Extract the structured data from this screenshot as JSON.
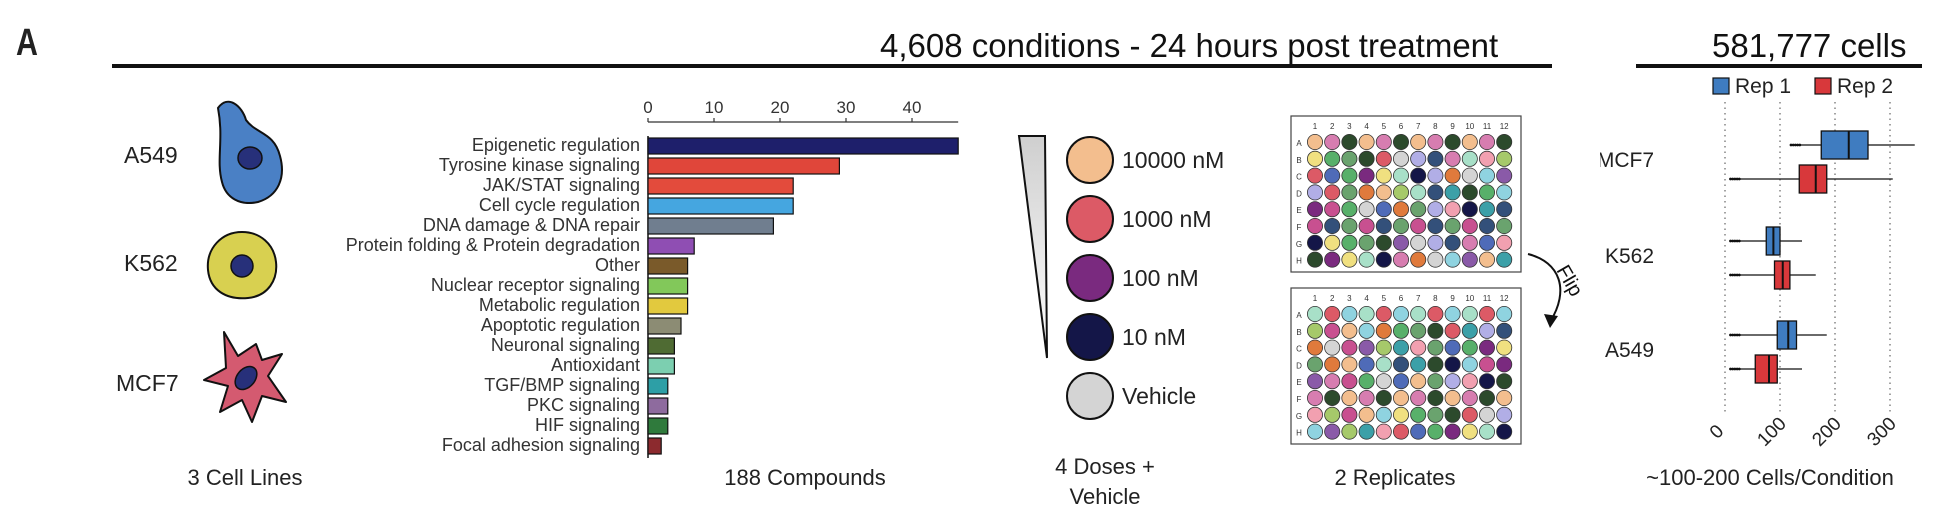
{
  "panel_letter": "A",
  "header": {
    "main_title": "4,608 conditions - 24 hours post treatment",
    "right_title": "581,777 cells"
  },
  "cell_lines": {
    "items": [
      {
        "label": "A549",
        "color": "#4a80c5"
      },
      {
        "label": "K562",
        "color": "#d8d050"
      },
      {
        "label": "MCF7",
        "color": "#d45a70"
      }
    ],
    "footer": "3 Cell Lines"
  },
  "compounds": {
    "footer": "188 Compounds",
    "chart_data": {
      "type": "bar",
      "orientation": "horizontal",
      "categories": [
        "Epigenetic regulation",
        "Tyrosine kinase signaling",
        "JAK/STAT signaling",
        "Cell cycle regulation",
        "DNA damage & DNA repair",
        "Protein folding & Protein degradation",
        "Other",
        "Nuclear receptor signaling",
        "Metabolic regulation",
        "Apoptotic regulation",
        "Neuronal signaling",
        "Antioxidant",
        "TGF/BMP signaling",
        "PKC signaling",
        "HIF signaling",
        "Focal adhesion signaling"
      ],
      "values": [
        47,
        29,
        22,
        22,
        19,
        7,
        6,
        6,
        6,
        5,
        4,
        4,
        3,
        3,
        3,
        2
      ],
      "colors": [
        "#1e1f6b",
        "#e0463a",
        "#e34b3c",
        "#45a6e0",
        "#707e8f",
        "#8f4eb3",
        "#7a5a2a",
        "#82c85a",
        "#e2c93e",
        "#8c8c74",
        "#4f6b33",
        "#7ccfb0",
        "#2d9fa6",
        "#8e6b9e",
        "#2f7a3c",
        "#8c2a2e"
      ],
      "xlim": [
        0,
        47
      ],
      "xticks": [
        0,
        10,
        20,
        30,
        40
      ]
    }
  },
  "doses": {
    "items": [
      {
        "label": "10000 nM",
        "color": "#f3be8e"
      },
      {
        "label": "1000 nM",
        "color": "#dc5a66"
      },
      {
        "label": "100 nM",
        "color": "#7a2a7f"
      },
      {
        "label": "10 nM",
        "color": "#141648"
      },
      {
        "label": "Vehicle",
        "color": "#d4d4d4"
      }
    ],
    "footer_line1": "4 Doses +",
    "footer_line2": "Vehicle"
  },
  "replicates": {
    "flip_label": "Flip",
    "footer": "2 Replicates",
    "columns": [
      "1",
      "2",
      "3",
      "4",
      "5",
      "6",
      "7",
      "8",
      "9",
      "10",
      "11",
      "12"
    ],
    "rows": [
      "A",
      "B",
      "C",
      "D",
      "E",
      "F",
      "G",
      "H"
    ]
  },
  "cells_per_condition": {
    "footer": "~100-200 Cells/Condition",
    "legend": [
      {
        "label": "Rep 1",
        "color": "#3f7cc0"
      },
      {
        "label": "Rep 2",
        "color": "#d8383b"
      }
    ],
    "chart_data": {
      "type": "boxplot",
      "orientation": "horizontal",
      "categories": [
        "MCF7",
        "K562",
        "A549"
      ],
      "series": [
        {
          "name": "Rep 1",
          "stats": [
            {
              "min": 120,
              "q1": 175,
              "median": 225,
              "q3": 260,
              "max": 345
            },
            {
              "min": 10,
              "q1": 75,
              "median": 88,
              "q3": 100,
              "max": 140
            },
            {
              "min": 10,
              "q1": 95,
              "median": 115,
              "q3": 130,
              "max": 185
            }
          ]
        },
        {
          "name": "Rep 2",
          "stats": [
            {
              "min": 10,
              "q1": 135,
              "median": 165,
              "q3": 185,
              "max": 305
            },
            {
              "min": 10,
              "q1": 90,
              "median": 105,
              "q3": 118,
              "max": 165
            },
            {
              "min": 10,
              "q1": 55,
              "median": 80,
              "q3": 95,
              "max": 140
            }
          ]
        }
      ],
      "xlim": [
        0,
        350
      ],
      "xticks": [
        0,
        100,
        200,
        300
      ],
      "grid": "dotted vertical"
    }
  }
}
